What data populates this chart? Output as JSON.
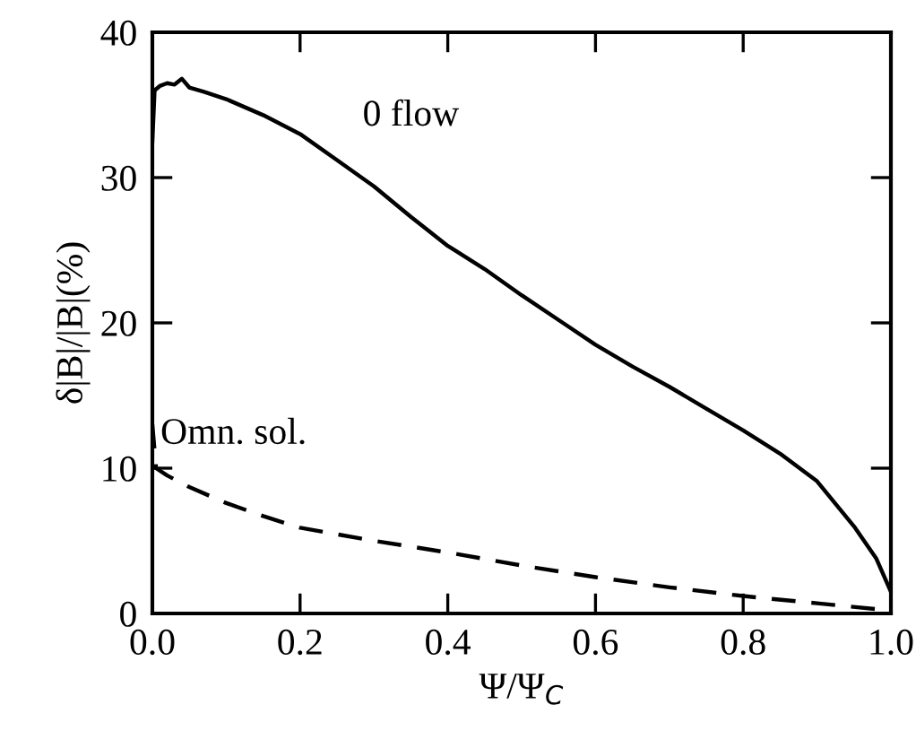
{
  "chart_data": {
    "type": "line",
    "xlabel": "Ψ/Ψ$_{C}$",
    "ylabel": "δ|B|/|B|(%)",
    "xlim": [
      0.0,
      1.0
    ],
    "xticks": [
      {
        "value": 0,
        "label": "0.0"
      },
      0.2,
      0.4,
      0.6,
      0.8,
      {
        "value": 1,
        "label": "1.0"
      }
    ],
    "ylim": [
      0,
      40
    ],
    "yticks": [
      0,
      10,
      20,
      30,
      40
    ],
    "grid": false,
    "marker": "none",
    "series": [
      {
        "name": "0 flow",
        "color": "#000000",
        "line_style": "solid",
        "x": [
          0.0,
          0.003,
          0.01,
          0.02,
          0.03,
          0.04,
          0.05,
          0.07,
          0.1,
          0.15,
          0.2,
          0.25,
          0.3,
          0.35,
          0.4,
          0.45,
          0.5,
          0.55,
          0.6,
          0.65,
          0.7,
          0.75,
          0.8,
          0.85,
          0.9,
          0.95,
          0.98,
          1.0
        ],
        "values": [
          32.5,
          36.0,
          36.3,
          36.5,
          36.4,
          36.8,
          36.2,
          35.9,
          35.4,
          34.3,
          33.0,
          31.2,
          29.4,
          27.3,
          25.3,
          23.7,
          21.9,
          20.2,
          18.5,
          17.0,
          15.6,
          14.1,
          12.6,
          11.0,
          9.1,
          6.0,
          3.8,
          1.5
        ]
      },
      {
        "name": "Omn. sol.",
        "color": "#000000",
        "line_style": "dashed",
        "x": [
          0.0,
          0.005,
          0.02,
          0.05,
          0.1,
          0.15,
          0.2,
          0.3,
          0.4,
          0.5,
          0.6,
          0.7,
          0.8,
          0.9,
          1.0
        ],
        "values": [
          13.0,
          10.0,
          9.5,
          8.7,
          7.6,
          6.7,
          5.9,
          5.0,
          4.2,
          3.3,
          2.5,
          1.8,
          1.2,
          0.7,
          0.2
        ]
      }
    ]
  }
}
